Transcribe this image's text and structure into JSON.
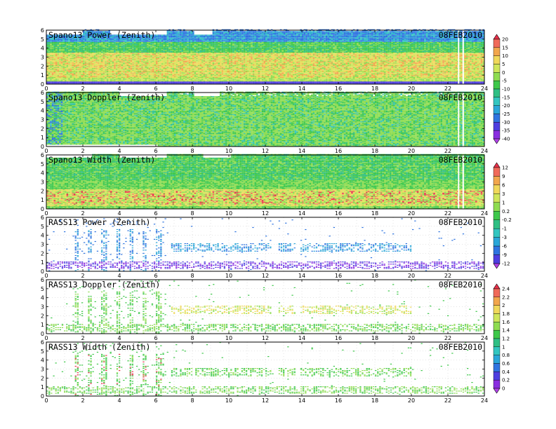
{
  "chart_data": [
    {
      "type": "heatmap",
      "title": "Spano13 Power (Zenith)",
      "date": "08FEB2010",
      "x_ticks": [
        "0",
        "2",
        "4",
        "6",
        "8",
        "10",
        "12",
        "14",
        "16",
        "18",
        "20",
        "22",
        "24"
      ],
      "y_ticks": [
        "0",
        "1",
        "2",
        "3",
        "4",
        "5",
        "6"
      ],
      "xlim": [
        0,
        24
      ],
      "ylim": [
        0,
        6
      ],
      "grid": true,
      "pattern": "power"
    },
    {
      "type": "heatmap",
      "title": "Spano13 Doppler (Zenith)",
      "date": "08FEB2010",
      "x_ticks": [
        "0",
        "2",
        "4",
        "6",
        "8",
        "10",
        "12",
        "14",
        "16",
        "18",
        "20",
        "22",
        "24"
      ],
      "y_ticks": [
        "0",
        "1",
        "2",
        "3",
        "4",
        "5",
        "6"
      ],
      "xlim": [
        0,
        24
      ],
      "ylim": [
        0,
        6
      ],
      "grid": true,
      "pattern": "doppler"
    },
    {
      "type": "heatmap",
      "title": "Spano13 Width (Zenith)",
      "date": "08FEB2010",
      "x_ticks": [
        "0",
        "2",
        "4",
        "6",
        "8",
        "10",
        "12",
        "14",
        "16",
        "18",
        "20",
        "22",
        "24"
      ],
      "y_ticks": [
        "0",
        "1",
        "2",
        "3",
        "4",
        "5",
        "6"
      ],
      "xlim": [
        0,
        24
      ],
      "ylim": [
        0,
        6
      ],
      "grid": true,
      "pattern": "width"
    },
    {
      "type": "heatmap",
      "title": "RASS13 Power (Zenith)",
      "date": "08FEB2010",
      "x_ticks": [
        "0",
        "2",
        "4",
        "6",
        "8",
        "10",
        "12",
        "14",
        "16",
        "18",
        "20",
        "22",
        "24"
      ],
      "y_ticks": [
        "0",
        "1",
        "2",
        "3",
        "4",
        "5",
        "6"
      ],
      "xlim": [
        0,
        24
      ],
      "ylim": [
        0,
        6
      ],
      "grid": true,
      "pattern": "rpower"
    },
    {
      "type": "heatmap",
      "title": "RASS13 Doppler (Zenith)",
      "date": "08FEB2010",
      "x_ticks": [
        "0",
        "2",
        "4",
        "6",
        "8",
        "10",
        "12",
        "14",
        "16",
        "18",
        "20",
        "22",
        "24"
      ],
      "y_ticks": [
        "0",
        "1",
        "2",
        "3",
        "4",
        "5",
        "6"
      ],
      "xlim": [
        0,
        24
      ],
      "ylim": [
        0,
        6
      ],
      "grid": true,
      "pattern": "rdoppler"
    },
    {
      "type": "heatmap",
      "title": "RASS13 Width (Zenith)",
      "date": "08FEB2010",
      "x_ticks": [
        "0",
        "2",
        "4",
        "6",
        "8",
        "10",
        "12",
        "14",
        "16",
        "18",
        "20",
        "22",
        "24"
      ],
      "y_ticks": [
        "0",
        "1",
        "2",
        "3",
        "4",
        "5",
        "6"
      ],
      "xlim": [
        0,
        24
      ],
      "ylim": [
        0,
        6
      ],
      "grid": true,
      "pattern": "rwidth"
    }
  ],
  "colorbars": [
    {
      "labels": [
        "20",
        "15",
        "10",
        "5",
        "0",
        "-5",
        "-10",
        "-15",
        "-20",
        "-25",
        "-30",
        "-35",
        "-40"
      ],
      "colors": [
        "#e8304a",
        "#f06a5a",
        "#f2a64c",
        "#f0d85a",
        "#cfe65a",
        "#8edc50",
        "#3ec84a",
        "#2fbf84",
        "#33c6c0",
        "#2aa6d8",
        "#2f74e0",
        "#4e3ee0",
        "#8a2ee0",
        "#b040e8"
      ]
    },
    {
      "labels": [
        "12",
        "9",
        "6",
        "3",
        "1",
        "0.2",
        "-0.2",
        "-1",
        "-3",
        "-6",
        "-9",
        "-12"
      ],
      "colors": [
        "#e8304a",
        "#f06a5a",
        "#f2a64c",
        "#f0d85a",
        "#cfe65a",
        "#8edc50",
        "#3ec84a",
        "#2fbf84",
        "#33c6c0",
        "#2aa6d8",
        "#2f74e0",
        "#4e3ee0",
        "#b040e8"
      ]
    },
    {
      "labels": [
        "2.4",
        "2.2",
        "2",
        "1.8",
        "1.6",
        "1.4",
        "1.2",
        "1",
        "0.8",
        "0.6",
        "0.4",
        "0.2",
        "0"
      ],
      "colors": [
        "#e8304a",
        "#f06a5a",
        "#f2a64c",
        "#f0d85a",
        "#cfe65a",
        "#8edc50",
        "#3ec84a",
        "#2fbf84",
        "#33c6c0",
        "#2aa6d8",
        "#2f74e0",
        "#4e3ee0",
        "#8a2ee0",
        "#b040e8"
      ]
    }
  ]
}
